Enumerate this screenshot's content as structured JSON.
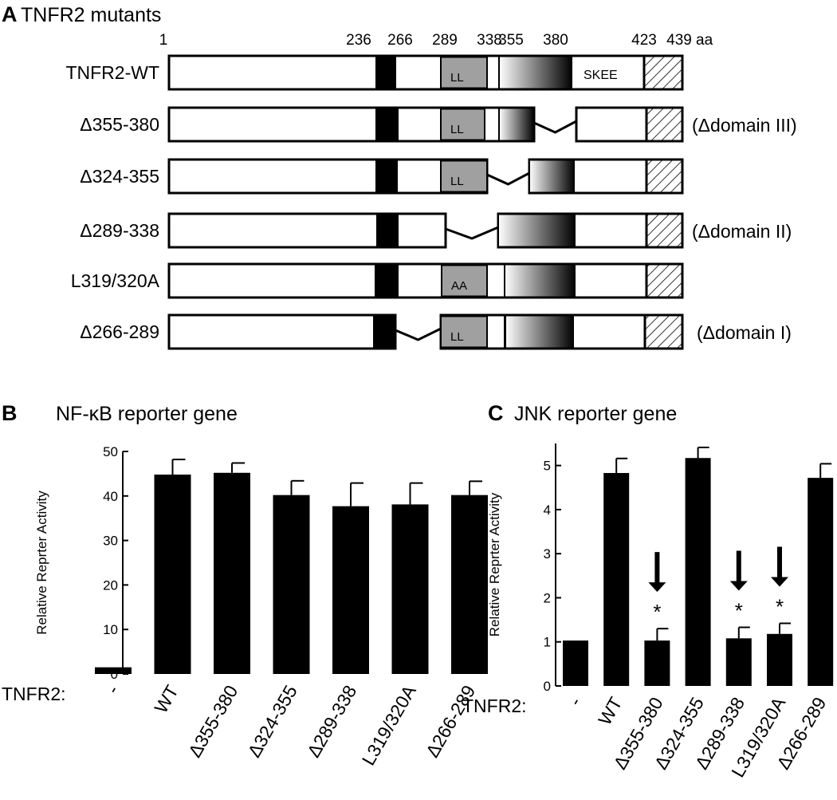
{
  "panel_a": {
    "letter": "A",
    "title": "TNFR2 mutants",
    "positions": [
      "1",
      "236",
      "266",
      "289",
      "338",
      "355",
      "380",
      "423",
      "439"
    ],
    "unit": "aa",
    "constructs": [
      {
        "label": "TNFR2-WT",
        "note": "",
        "box_label": "LL",
        "tail_text": "SKEE"
      },
      {
        "label": "Δ355-380",
        "note": "(Δdomain III)",
        "box_label": "LL",
        "tail_text": ""
      },
      {
        "label": "Δ324-355",
        "note": "",
        "box_label": "LL",
        "tail_text": ""
      },
      {
        "label": "Δ289-338",
        "note": "(Δdomain II)",
        "box_label": "",
        "tail_text": ""
      },
      {
        "label": "L319/320A",
        "note": "",
        "box_label": "AA",
        "tail_text": ""
      },
      {
        "label": "Δ266-289",
        "note": "(Δdomain I)",
        "box_label": "LL",
        "tail_text": ""
      }
    ]
  },
  "panel_b": {
    "letter": "B",
    "title": "NF-κB reporter gene",
    "row_label": "TNFR2:"
  },
  "panel_c": {
    "letter": "C",
    "title": "JNK reporter gene",
    "row_label": "TNFR2:"
  },
  "chart_data": [
    {
      "type": "bar",
      "title": "NF-κB reporter gene",
      "ylabel": "Relative Reprter Activity",
      "xlabel": "TNFR2:",
      "categories": [
        "-",
        "WT",
        "Δ355-380",
        "Δ324-355",
        "Δ289-338",
        "L319/320A",
        "Δ266-289"
      ],
      "values": [
        1.5,
        44.8,
        45.2,
        40.2,
        37.7,
        38.1,
        40.2
      ],
      "errors": [
        0,
        3.4,
        2.2,
        3.2,
        5.2,
        4.8,
        3.1
      ],
      "ylim": [
        0,
        50
      ],
      "yticks": [
        "0",
        "10",
        "20",
        "30",
        "40",
        "50"
      ],
      "significance": [
        "",
        "",
        "",
        "",
        "",
        "",
        ""
      ]
    },
    {
      "type": "bar",
      "title": "JNK reporter gene",
      "ylabel": "Relative Reprter Activity",
      "xlabel": "TNFR2:",
      "categories": [
        "-",
        "WT",
        "Δ355-380",
        "Δ324-355",
        "Δ289-338",
        "L319/320A",
        "Δ266-289"
      ],
      "values": [
        1.03,
        4.83,
        1.03,
        5.17,
        1.08,
        1.18,
        4.72
      ],
      "errors": [
        0,
        0.33,
        0.27,
        0.24,
        0.25,
        0.24,
        0.32
      ],
      "ylim": [
        0,
        5.5
      ],
      "yticks": [
        "0",
        "1",
        "2",
        "3",
        "4",
        "5"
      ],
      "significance": [
        "",
        "",
        "*",
        "",
        "*",
        "*",
        ""
      ],
      "arrows": [
        false,
        false,
        true,
        false,
        true,
        true,
        false
      ]
    }
  ]
}
